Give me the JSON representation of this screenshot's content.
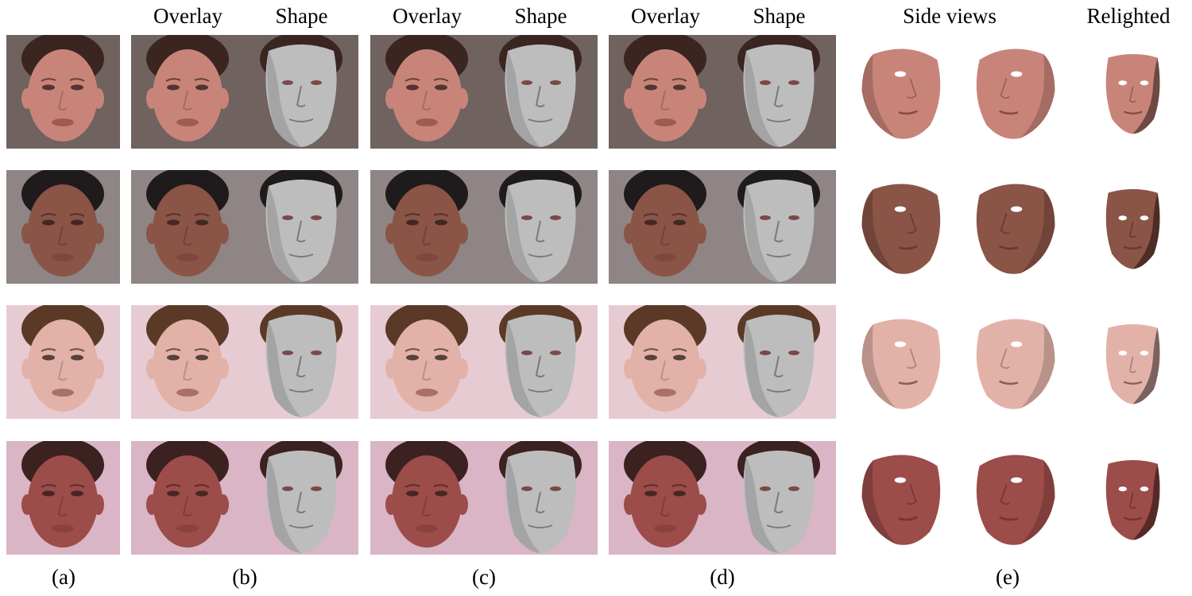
{
  "headers": {
    "b_overlay": "Overlay",
    "b_shape": "Shape",
    "c_overlay": "Overlay",
    "c_shape": "Shape",
    "d_overlay": "Overlay",
    "d_shape": "Shape",
    "e_side": "Side views",
    "e_relight": "Relighted"
  },
  "captions": {
    "a": "(a)",
    "b": "(b)",
    "c": "(c)",
    "d": "(d)",
    "e": "(e)"
  },
  "subjects": [
    {
      "skin": "#c98479",
      "hair": "#3a2520",
      "bg": "#6f625f"
    },
    {
      "skin": "#8a5446",
      "hair": "#1f1a1c",
      "bg": "#8e8584"
    },
    {
      "skin": "#e2b2a8",
      "hair": "#5a3a26",
      "bg": "#e7cbd3"
    },
    {
      "skin": "#9c4c49",
      "hair": "#3b2120",
      "bg": "#d9b5c6"
    }
  ],
  "colors": {
    "mesh": "#bdbdbd",
    "mesh_shadow": "#8f8f8f"
  }
}
